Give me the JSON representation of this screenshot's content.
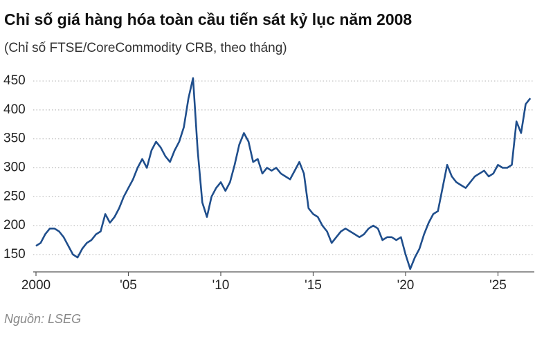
{
  "chart_data": {
    "type": "line",
    "title": "Chỉ số giá hàng hóa toàn cầu tiến sát kỷ lục năm 2008",
    "subtitle": "(Chỉ số FTSE/CoreCommodity CRB, theo tháng)",
    "source": "Nguồn: LSEG",
    "x": [
      2000,
      2000.25,
      2000.5,
      2000.75,
      2001,
      2001.25,
      2001.5,
      2001.75,
      2002,
      2002.25,
      2002.5,
      2002.75,
      2003,
      2003.25,
      2003.5,
      2003.75,
      2004,
      2004.25,
      2004.5,
      2004.75,
      2005,
      2005.25,
      2005.5,
      2005.75,
      2006,
      2006.25,
      2006.5,
      2006.75,
      2007,
      2007.25,
      2007.5,
      2007.75,
      2008,
      2008.25,
      2008.5,
      2008.75,
      2009,
      2009.25,
      2009.5,
      2009.75,
      2010,
      2010.25,
      2010.5,
      2010.75,
      2011,
      2011.25,
      2011.5,
      2011.75,
      2012,
      2012.25,
      2012.5,
      2012.75,
      2013,
      2013.25,
      2013.5,
      2013.75,
      2014,
      2014.25,
      2014.5,
      2014.75,
      2015,
      2015.25,
      2015.5,
      2015.75,
      2016,
      2016.25,
      2016.5,
      2016.75,
      2017,
      2017.25,
      2017.5,
      2017.75,
      2018,
      2018.25,
      2018.5,
      2018.75,
      2019,
      2019.25,
      2019.5,
      2019.75,
      2020,
      2020.25,
      2020.5,
      2020.75,
      2021,
      2021.25,
      2021.5,
      2021.75,
      2022,
      2022.25,
      2022.5,
      2022.75,
      2023,
      2023.25,
      2023.5,
      2023.75,
      2024,
      2024.25,
      2024.5,
      2024.75,
      2025,
      2025.25,
      2025.5,
      2025.75,
      2026,
      2026.25,
      2026.5,
      2026.75
    ],
    "series": [
      {
        "name": "FTSE/CoreCommodity CRB",
        "color": "#1f4e8c",
        "values": [
          165,
          170,
          185,
          195,
          195,
          190,
          180,
          165,
          150,
          145,
          160,
          170,
          175,
          185,
          190,
          220,
          205,
          215,
          230,
          250,
          265,
          280,
          300,
          315,
          300,
          330,
          345,
          335,
          320,
          310,
          330,
          345,
          370,
          420,
          455,
          330,
          240,
          215,
          250,
          265,
          275,
          260,
          275,
          305,
          340,
          360,
          345,
          310,
          315,
          290,
          300,
          295,
          300,
          290,
          285,
          280,
          295,
          310,
          290,
          230,
          220,
          215,
          200,
          190,
          170,
          180,
          190,
          195,
          190,
          185,
          180,
          185,
          195,
          200,
          195,
          175,
          180,
          180,
          175,
          180,
          150,
          125,
          145,
          160,
          185,
          205,
          220,
          225,
          265,
          305,
          285,
          275,
          270,
          265,
          275,
          285,
          290,
          295,
          285,
          290,
          305,
          300,
          300,
          305,
          380,
          360,
          410,
          420
        ]
      }
    ],
    "xlim": [
      2000,
      2027
    ],
    "xticks": [
      2000,
      {
        "value": 2005,
        "label": "'05"
      },
      {
        "value": 2010,
        "label": "'10"
      },
      {
        "value": 2015,
        "label": "'15"
      },
      {
        "value": 2020,
        "label": "'20"
      },
      {
        "value": 2025,
        "label": "'25"
      }
    ],
    "ylim": [
      120,
      465
    ],
    "yticks": [
      150,
      200,
      250,
      300,
      350,
      400,
      450
    ],
    "grid": true
  }
}
